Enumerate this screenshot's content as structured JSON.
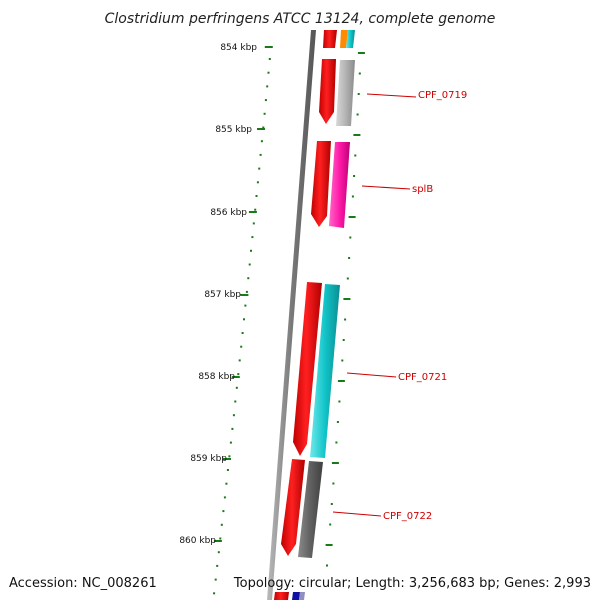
{
  "title": "Clostridium perfringens ATCC 13124, complete genome",
  "accession": "Accession: NC_008261",
  "summary": "Topology: circular; Length: 3,256,683 bp; Genes: 2,993",
  "ruler": {
    "unit": "kbp",
    "labels": [
      "854 kbp",
      "855 kbp",
      "856 kbp",
      "857 kbp",
      "858 kbp",
      "859 kbp",
      "860 kbp"
    ]
  },
  "genes": [
    {
      "name": "CPF_0719",
      "color": "#ff0000",
      "track2_color": "#b0b0b0"
    },
    {
      "name": "splB",
      "color": "#ff0000",
      "track2_color": "#ff1aa8"
    },
    {
      "name": "CPF_0721",
      "color": "#ff0000",
      "track2_color": "#11c4c8"
    },
    {
      "name": "CPF_0722",
      "color": "#ff0000",
      "track2_color": "#606060"
    }
  ],
  "colors": {
    "backbone": "#808080",
    "ruler": "#1a7a1a",
    "label_line": "#cc0000",
    "top_orange": "#ff8c00",
    "top_cyan": "#11c4c8",
    "bottom_blue": "#1010a0"
  }
}
